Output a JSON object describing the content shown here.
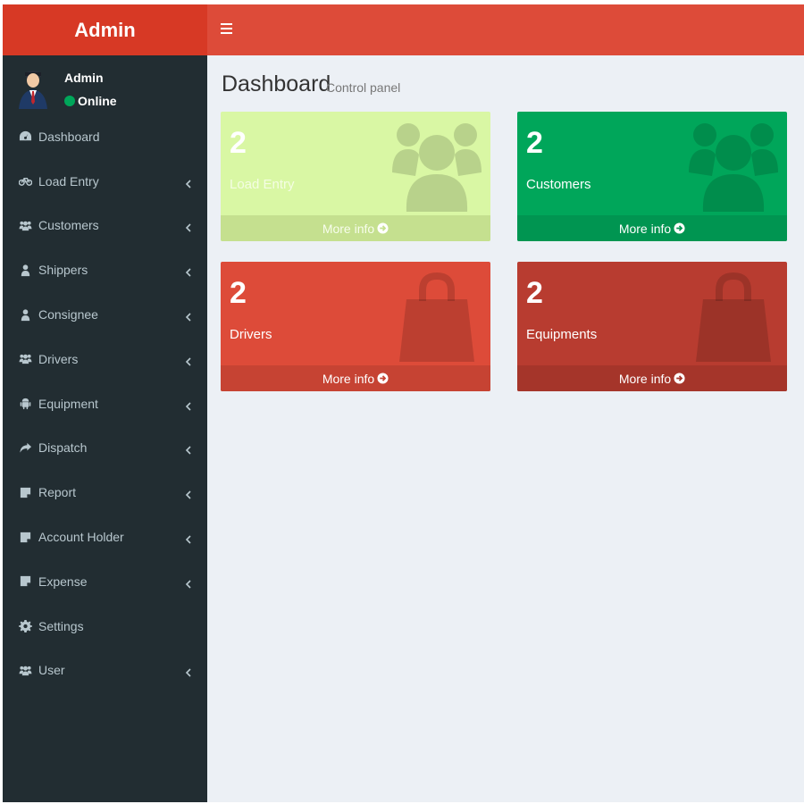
{
  "brand": {
    "title": "Admin"
  },
  "user": {
    "name": "Admin",
    "status": "Online"
  },
  "menu": [
    {
      "label": "Dashboard",
      "icon": "dashboard-icon",
      "has_children": false
    },
    {
      "label": "Load Entry",
      "icon": "bicycle-icon",
      "has_children": true
    },
    {
      "label": "Customers",
      "icon": "users-icon",
      "has_children": true
    },
    {
      "label": "Shippers",
      "icon": "user-icon",
      "has_children": true
    },
    {
      "label": "Consignee",
      "icon": "user-icon",
      "has_children": true
    },
    {
      "label": "Drivers",
      "icon": "users-icon",
      "has_children": true
    },
    {
      "label": "Equipment",
      "icon": "android-icon",
      "has_children": true
    },
    {
      "label": "Dispatch",
      "icon": "share-icon",
      "has_children": true
    },
    {
      "label": "Report",
      "icon": "note-icon",
      "has_children": true
    },
    {
      "label": "Account Holder",
      "icon": "note-icon",
      "has_children": true
    },
    {
      "label": "Expense",
      "icon": "note-icon",
      "has_children": true
    },
    {
      "label": "Settings",
      "icon": "gear-icon",
      "has_children": false
    },
    {
      "label": "User",
      "icon": "users-icon",
      "has_children": true
    }
  ],
  "page": {
    "title": "Dashboard",
    "subtitle": "Control panel"
  },
  "boxes": [
    {
      "count": "2",
      "label": "Load Entry",
      "more": "More info",
      "icon": "users-icon",
      "color": "#d9f7a4"
    },
    {
      "count": "2",
      "label": "Customers",
      "more": "More info",
      "icon": "users-icon",
      "color": "#00a65a"
    },
    {
      "count": "2",
      "label": "Drivers",
      "more": "More info",
      "icon": "shopping-bag-icon",
      "color": "#dd4b39"
    },
    {
      "count": "2",
      "label": "Equipments",
      "more": "More info",
      "icon": "shopping-bag-icon",
      "color": "#b83c30"
    }
  ],
  "colors": {
    "header": "#dd4b39",
    "brand": "#d73925",
    "sidebar": "#222d32",
    "content_bg": "#ecf0f5"
  }
}
